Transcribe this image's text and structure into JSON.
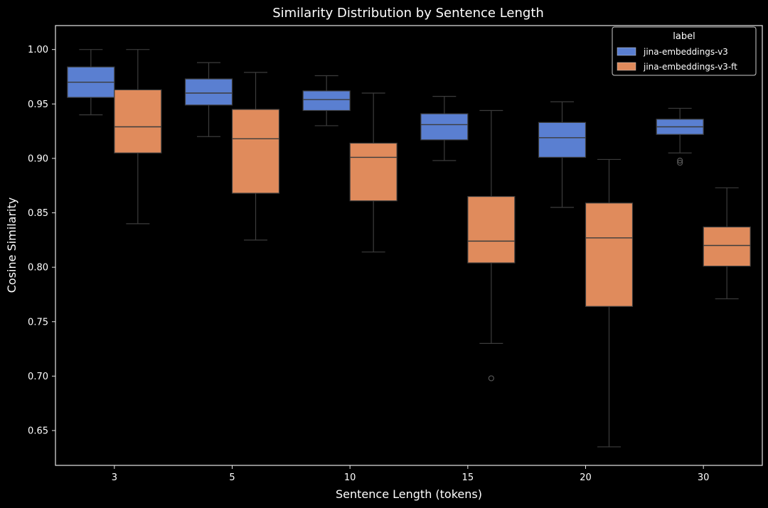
{
  "chart_data": {
    "type": "box",
    "title": "Similarity Distribution by Sentence Length",
    "xlabel": "Sentence Length (tokens)",
    "ylabel": "Cosine Similarity",
    "categories": [
      "3",
      "5",
      "10",
      "15",
      "20",
      "30"
    ],
    "ylim": [
      0.618,
      1.022
    ],
    "yticks": [
      0.65,
      0.7,
      0.75,
      0.8,
      0.85,
      0.9,
      0.95,
      1.0
    ],
    "ytick_labels": [
      "0.65",
      "0.70",
      "0.75",
      "0.80",
      "0.85",
      "0.90",
      "0.95",
      "1.00"
    ],
    "grid": false,
    "legend": {
      "title": "label",
      "placement": "top-right"
    },
    "series": [
      {
        "name": "jina-embeddings-v3",
        "color": "#5a7fd1",
        "boxes": [
          {
            "whisker_low": 0.94,
            "q1": 0.956,
            "median": 0.97,
            "q3": 0.984,
            "whisker_high": 1.0,
            "outliers": []
          },
          {
            "whisker_low": 0.92,
            "q1": 0.949,
            "median": 0.96,
            "q3": 0.973,
            "whisker_high": 0.988,
            "outliers": []
          },
          {
            "whisker_low": 0.93,
            "q1": 0.944,
            "median": 0.954,
            "q3": 0.962,
            "whisker_high": 0.976,
            "outliers": []
          },
          {
            "whisker_low": 0.898,
            "q1": 0.917,
            "median": 0.931,
            "q3": 0.941,
            "whisker_high": 0.957,
            "outliers": []
          },
          {
            "whisker_low": 0.855,
            "q1": 0.901,
            "median": 0.919,
            "q3": 0.933,
            "whisker_high": 0.952,
            "outliers": []
          },
          {
            "whisker_low": 0.905,
            "q1": 0.922,
            "median": 0.929,
            "q3": 0.936,
            "whisker_high": 0.946,
            "outliers": [
              0.898,
              0.896
            ]
          }
        ]
      },
      {
        "name": "jina-embeddings-v3-ft",
        "color": "#e08b5c",
        "boxes": [
          {
            "whisker_low": 0.84,
            "q1": 0.905,
            "median": 0.929,
            "q3": 0.963,
            "whisker_high": 1.0,
            "outliers": []
          },
          {
            "whisker_low": 0.825,
            "q1": 0.868,
            "median": 0.918,
            "q3": 0.945,
            "whisker_high": 0.979,
            "outliers": []
          },
          {
            "whisker_low": 0.814,
            "q1": 0.861,
            "median": 0.901,
            "q3": 0.914,
            "whisker_high": 0.96,
            "outliers": []
          },
          {
            "whisker_low": 0.73,
            "q1": 0.804,
            "median": 0.824,
            "q3": 0.865,
            "whisker_high": 0.944,
            "outliers": [
              0.698
            ]
          },
          {
            "whisker_low": 0.635,
            "q1": 0.764,
            "median": 0.827,
            "q3": 0.859,
            "whisker_high": 0.899,
            "outliers": []
          },
          {
            "whisker_low": 0.771,
            "q1": 0.801,
            "median": 0.82,
            "q3": 0.837,
            "whisker_high": 0.873,
            "outliers": []
          }
        ]
      }
    ]
  }
}
